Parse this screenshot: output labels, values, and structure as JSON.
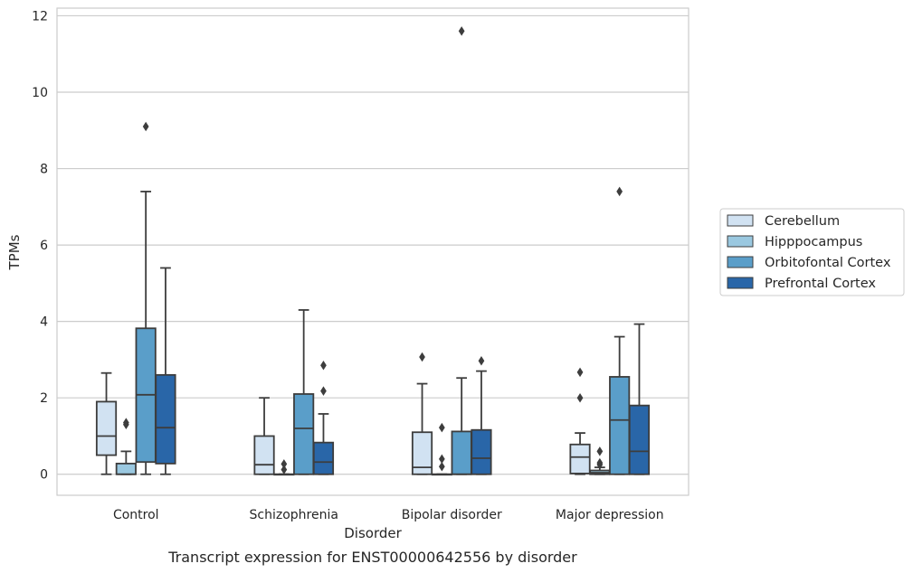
{
  "chart_data": {
    "type": "box",
    "title": "",
    "caption": "Transcript expression for ENST00000642556 by disorder",
    "xlabel": "Disorder",
    "ylabel": "TPMs",
    "ylim": [
      -0.55,
      12.2
    ],
    "yticks": [
      "0",
      "2",
      "4",
      "6",
      "8",
      "10",
      "12"
    ],
    "grid": "horizontal",
    "legend_position": "right",
    "categories": [
      "Control",
      "Schizophrenia",
      "Bipolar disorder",
      "Major depression"
    ],
    "series": [
      {
        "name": "Cerebellum",
        "color": "#d1e2f2",
        "boxes": [
          {
            "whislo": 0.0,
            "q1": 0.5,
            "med": 1.0,
            "q3": 1.9,
            "whishi": 2.65,
            "fliers": []
          },
          {
            "whislo": 0.0,
            "q1": 0.0,
            "med": 0.25,
            "q3": 1.0,
            "whishi": 2.0,
            "fliers": []
          },
          {
            "whislo": 0.0,
            "q1": 0.0,
            "med": 0.18,
            "q3": 1.1,
            "whishi": 2.37,
            "fliers": [
              3.07
            ]
          },
          {
            "whislo": 0.0,
            "q1": 0.02,
            "med": 0.45,
            "q3": 0.78,
            "whishi": 1.08,
            "fliers": [
              2.0,
              2.67
            ]
          }
        ]
      },
      {
        "name": "Hipppocampus",
        "color": "#9ac8e0",
        "boxes": [
          {
            "whislo": 0.0,
            "q1": 0.0,
            "med": 0.0,
            "q3": 0.28,
            "whishi": 0.6,
            "fliers": [
              1.3,
              1.35
            ]
          },
          {
            "whislo": 0.0,
            "q1": 0.0,
            "med": 0.0,
            "q3": 0.0,
            "whishi": 0.0,
            "fliers": [
              0.12,
              0.27
            ]
          },
          {
            "whislo": 0.0,
            "q1": 0.0,
            "med": 0.0,
            "q3": 0.0,
            "whishi": 0.0,
            "fliers": [
              0.2,
              0.4,
              1.22
            ]
          },
          {
            "whislo": 0.0,
            "q1": 0.0,
            "med": 0.04,
            "q3": 0.1,
            "whishi": 0.18,
            "fliers": [
              0.25,
              0.3,
              0.6
            ]
          }
        ]
      },
      {
        "name": "Orbitofontal Cortex",
        "color": "#5a9ec9",
        "boxes": [
          {
            "whislo": 0.0,
            "q1": 0.32,
            "med": 2.08,
            "q3": 3.82,
            "whishi": 7.4,
            "fliers": [
              9.1
            ]
          },
          {
            "whislo": 0.0,
            "q1": 0.0,
            "med": 1.2,
            "q3": 2.1,
            "whishi": 4.3,
            "fliers": []
          },
          {
            "whislo": 0.0,
            "q1": 0.0,
            "med": 0.0,
            "q3": 1.12,
            "whishi": 2.52,
            "fliers": [
              11.6
            ]
          },
          {
            "whislo": 0.0,
            "q1": 0.0,
            "med": 1.42,
            "q3": 2.55,
            "whishi": 3.6,
            "fliers": [
              7.4
            ]
          }
        ]
      },
      {
        "name": "Prefrontal Cortex",
        "color": "#2966a8",
        "boxes": [
          {
            "whislo": 0.0,
            "q1": 0.28,
            "med": 1.22,
            "q3": 2.6,
            "whishi": 5.4,
            "fliers": []
          },
          {
            "whislo": 0.0,
            "q1": 0.0,
            "med": 0.32,
            "q3": 0.83,
            "whishi": 1.58,
            "fliers": [
              2.18,
              2.85
            ]
          },
          {
            "whislo": 0.0,
            "q1": 0.0,
            "med": 0.42,
            "q3": 1.16,
            "whishi": 2.7,
            "fliers": [
              2.97
            ]
          },
          {
            "whislo": 0.0,
            "q1": 0.0,
            "med": 0.6,
            "q3": 1.8,
            "whishi": 3.93,
            "fliers": []
          }
        ]
      }
    ]
  }
}
